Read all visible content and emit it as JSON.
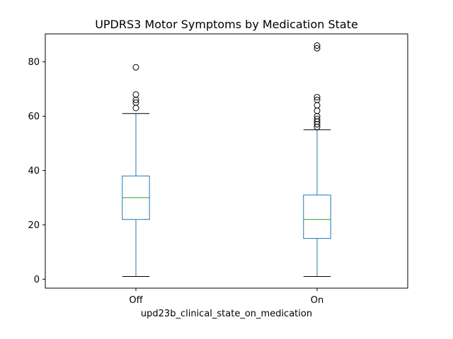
{
  "chart_data": {
    "type": "box",
    "title": "UPDRS3 Motor Symptoms by Medication State",
    "xlabel": "upd23b_clinical_state_on_medication",
    "ylabel": "",
    "ylim": [
      -3.3,
      90.3
    ],
    "yticks": [
      0,
      20,
      40,
      60,
      80
    ],
    "categories": [
      "Off",
      "On"
    ],
    "grid": false,
    "boxes": [
      {
        "category": "Off",
        "whisker_low": 1,
        "q1": 22,
        "median": 30,
        "q3": 38,
        "whisker_high": 61,
        "outliers": [
          63,
          65,
          66,
          68,
          78
        ]
      },
      {
        "category": "On",
        "whisker_low": 1,
        "q1": 15,
        "median": 22,
        "q3": 31,
        "whisker_high": 55,
        "outliers": [
          56,
          57,
          58,
          59,
          60,
          62,
          64,
          66,
          67,
          85,
          86
        ]
      }
    ],
    "colors": {
      "box": "#1f77b4",
      "median": "#2ca02c",
      "outlier": "#000000"
    }
  }
}
